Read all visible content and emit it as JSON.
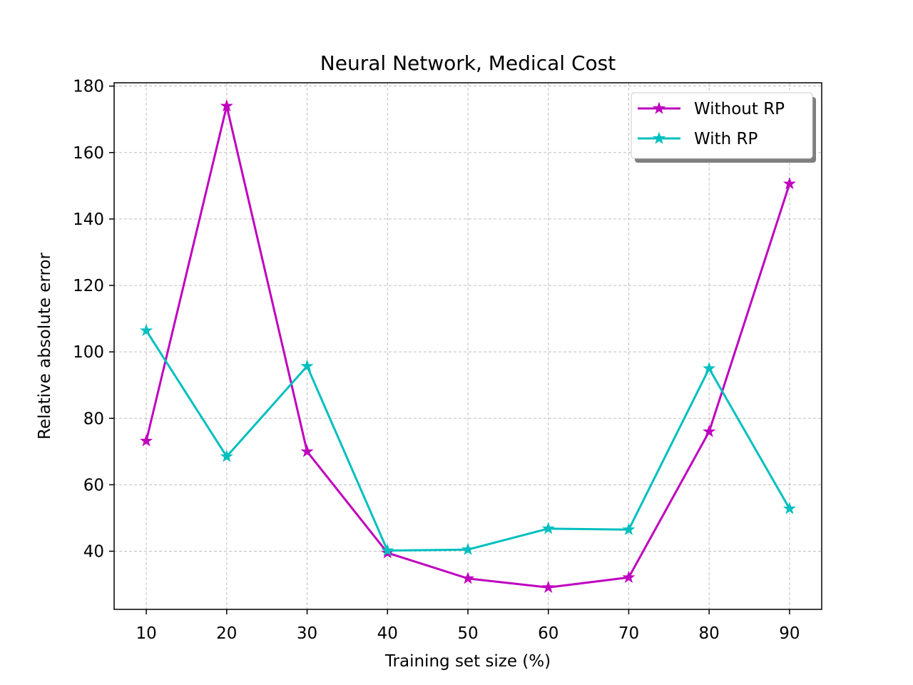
{
  "chart_data": {
    "type": "line",
    "title": "Neural Network, Medical Cost",
    "xlabel": "Training set size (%)",
    "ylabel": "Relative absolute error",
    "x": [
      10,
      20,
      30,
      40,
      50,
      60,
      70,
      80,
      90
    ],
    "xticks": [
      "10",
      "20",
      "30",
      "40",
      "50",
      "60",
      "70",
      "80",
      "90"
    ],
    "yticks": [
      "40",
      "60",
      "80",
      "100",
      "120",
      "140",
      "160",
      "180"
    ],
    "xlim": [
      6,
      94
    ],
    "ylim": [
      22.5,
      181
    ],
    "grid": true,
    "legend_position": "upper right",
    "marker": "star",
    "series": [
      {
        "name": "Without RP",
        "color": "#bf00bf",
        "values": [
          73.2,
          174.0,
          70.0,
          39.5,
          31.8,
          29.1,
          32.1,
          76.0,
          150.6
        ]
      },
      {
        "name": "With RP",
        "color": "#00bfbf",
        "values": [
          106.4,
          68.5,
          95.7,
          40.2,
          40.5,
          46.8,
          46.5,
          95.0,
          52.8
        ]
      }
    ]
  }
}
